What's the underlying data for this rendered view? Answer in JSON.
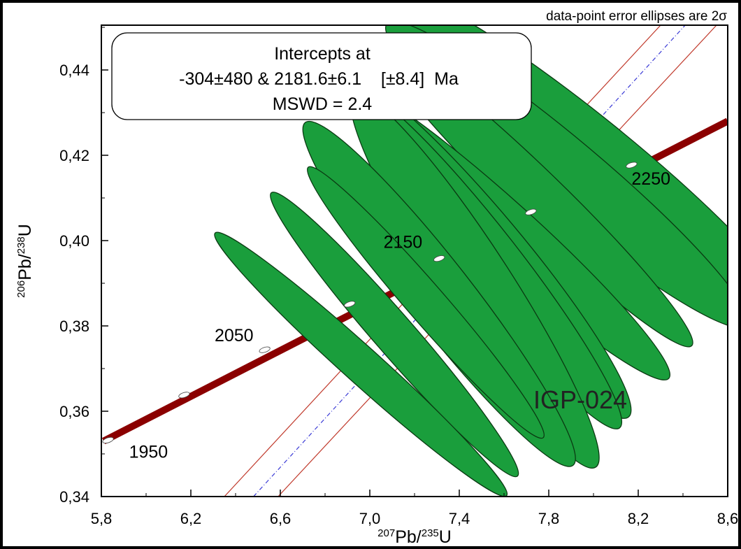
{
  "chart_data": {
    "type": "scatter",
    "subtype": "U-Pb concordia diagram",
    "title": "",
    "note": "data-point error ellipses are 2σ",
    "sample_label": "IGP-024",
    "xlabel": {
      "sup": "207",
      "main": "Pb/",
      "sup2": "235",
      "main2": "U"
    },
    "ylabel": {
      "sup": "206",
      "main": "Pb/",
      "sup2": "238",
      "main2": "U"
    },
    "xlim": [
      5.8,
      8.6
    ],
    "ylim": [
      0.34,
      0.4505
    ],
    "x_ticks": [
      5.8,
      6.2,
      6.6,
      7.0,
      7.4,
      7.8,
      8.2,
      8.6
    ],
    "x_tick_labels": [
      "5,8",
      "6,2",
      "6,6",
      "7,0",
      "7,4",
      "7,8",
      "8,2",
      "8,6"
    ],
    "y_ticks": [
      0.34,
      0.36,
      0.38,
      0.4,
      0.42,
      0.44
    ],
    "y_tick_labels": [
      "0,34",
      "0,36",
      "0,38",
      "0,40",
      "0,42",
      "0,44"
    ],
    "grid": false,
    "intercept_box": {
      "line1": "Intercepts at",
      "line2": "-304±480 & 2181.6±6.1    [±8.4]  Ma",
      "line3": "MSWD = 2.4"
    },
    "concordia": {
      "color": "#8b0000",
      "points": [
        {
          "x": 5.81,
          "y": 0.353
        },
        {
          "x": 8.6,
          "y": 0.428
        }
      ],
      "age_markers": [
        {
          "age": "1950",
          "x": 5.83,
          "y": 0.3532,
          "labeled": true
        },
        {
          "age": "2000",
          "x": 6.17,
          "y": 0.3638,
          "labeled": false
        },
        {
          "age": "2050",
          "x": 6.53,
          "y": 0.3744,
          "labeled": true
        },
        {
          "age": "2100",
          "x": 6.91,
          "y": 0.3851,
          "labeled": false
        },
        {
          "age": "2150",
          "x": 7.31,
          "y": 0.3958,
          "labeled": true
        },
        {
          "age": "2200",
          "x": 7.72,
          "y": 0.4067,
          "labeled": false
        },
        {
          "age": "2250",
          "x": 8.17,
          "y": 0.4177,
          "labeled": true
        }
      ]
    },
    "discordia": {
      "best_fit_color": "#3b3bd6",
      "envelope_color": "#c0392b",
      "best_fit": [
        {
          "x": 6.48,
          "y": 0.34
        },
        {
          "x": 8.41,
          "y": 0.4505
        }
      ],
      "envelope_upper": [
        {
          "x": 6.35,
          "y": 0.34
        },
        {
          "x": 8.3,
          "y": 0.4505
        }
      ],
      "envelope_lower": [
        {
          "x": 6.59,
          "y": 0.34
        },
        {
          "x": 8.55,
          "y": 0.4505
        }
      ]
    },
    "ellipses": {
      "fill": "#1a9e3c",
      "stroke": "#0a3a12",
      "items": [
        {
          "cx": 7.99,
          "cy": 0.4195,
          "rx_data": 0.175,
          "ry_data": 0.0061,
          "angle_deg": -51
        },
        {
          "cx": 7.88,
          "cy": 0.4155,
          "rx_data": 0.155,
          "ry_data": 0.0055,
          "angle_deg": -50
        },
        {
          "cx": 7.74,
          "cy": 0.4108,
          "rx_data": 0.115,
          "ry_data": 0.0051,
          "angle_deg": -46
        },
        {
          "cx": 7.6,
          "cy": 0.4025,
          "rx_data": 0.13,
          "ry_data": 0.0052,
          "angle_deg": -48
        },
        {
          "cx": 7.52,
          "cy": 0.3985,
          "rx_data": 0.155,
          "ry_data": 0.0052,
          "angle_deg": -40
        },
        {
          "cx": 7.53,
          "cy": 0.3955,
          "rx_data": 0.135,
          "ry_data": 0.005,
          "angle_deg": -38
        },
        {
          "cx": 7.47,
          "cy": 0.3905,
          "rx_data": 0.155,
          "ry_data": 0.0052,
          "angle_deg": -33
        },
        {
          "cx": 7.31,
          "cy": 0.3875,
          "rx_data": 0.145,
          "ry_data": 0.0051,
          "angle_deg": -38
        },
        {
          "cx": 7.25,
          "cy": 0.3855,
          "rx_data": 0.085,
          "ry_data": 0.0042,
          "angle_deg": -41
        },
        {
          "cx": 7.11,
          "cy": 0.378,
          "rx_data": 0.09,
          "ry_data": 0.0044,
          "angle_deg": -41
        },
        {
          "cx": 6.96,
          "cy": 0.371,
          "rx_data": 0.082,
          "ry_data": 0.0046,
          "angle_deg": -48
        }
      ]
    }
  }
}
